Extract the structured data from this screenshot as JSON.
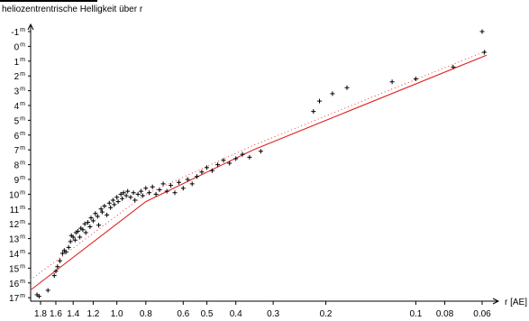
{
  "chart_data": {
    "type": "scatter",
    "title": "heliozentrentrische Helligkeit über r",
    "xlabel": "r [AE]",
    "ylabel": "",
    "x_scale": "log-reciprocal",
    "y_inverted": true,
    "ylim": [
      -1,
      17
    ],
    "x_ticks": [
      1.8,
      1.6,
      1.4,
      1.2,
      1.0,
      0.8,
      0.6,
      0.5,
      0.4,
      0.3,
      0.2,
      0.1,
      0.08,
      0.06
    ],
    "x_tick_labels": [
      "1.8",
      "1.6",
      "1.4",
      "1.2",
      "1.0",
      "0.8",
      "0.6",
      "0.5",
      "0.4",
      "0.3",
      "0.2",
      "0.1",
      "0.08",
      "0.06"
    ],
    "y_ticks": [
      -1,
      0,
      1,
      2,
      3,
      4,
      5,
      6,
      7,
      8,
      9,
      10,
      11,
      12,
      13,
      14,
      15,
      16,
      17
    ],
    "y_tick_labels": [
      "-1",
      "0",
      "1",
      "2",
      "3",
      "4",
      "5",
      "6",
      "7",
      "8",
      "9",
      "10",
      "11",
      "12",
      "13",
      "14",
      "15",
      "16",
      "17"
    ],
    "y_unit_superscript": "m",
    "grid": false,
    "colors": {
      "points": "#000000",
      "fit_line": "#e02020",
      "fit_dotted": "#e04040"
    },
    "series": [
      {
        "kind": "observations",
        "marker": "+",
        "points": [
          [
            1.85,
            16.8
          ],
          [
            1.82,
            16.9
          ],
          [
            1.7,
            16.5
          ],
          [
            1.62,
            15.5
          ],
          [
            1.6,
            15.2
          ],
          [
            1.58,
            14.9
          ],
          [
            1.55,
            14.5
          ],
          [
            1.52,
            14.0
          ],
          [
            1.5,
            13.8
          ],
          [
            1.48,
            13.9
          ],
          [
            1.45,
            13.6
          ],
          [
            1.43,
            13.2
          ],
          [
            1.42,
            12.8
          ],
          [
            1.4,
            12.9
          ],
          [
            1.38,
            13.1
          ],
          [
            1.37,
            12.6
          ],
          [
            1.35,
            12.5
          ],
          [
            1.33,
            12.9
          ],
          [
            1.32,
            12.3
          ],
          [
            1.3,
            12.4
          ],
          [
            1.28,
            12.0
          ],
          [
            1.27,
            12.6
          ],
          [
            1.25,
            11.9
          ],
          [
            1.23,
            12.2
          ],
          [
            1.22,
            11.6
          ],
          [
            1.2,
            11.8
          ],
          [
            1.18,
            11.3
          ],
          [
            1.16,
            11.5
          ],
          [
            1.15,
            12.1
          ],
          [
            1.13,
            11.0
          ],
          [
            1.12,
            11.2
          ],
          [
            1.1,
            10.8
          ],
          [
            1.08,
            11.4
          ],
          [
            1.06,
            10.6
          ],
          [
            1.05,
            10.9
          ],
          [
            1.03,
            10.4
          ],
          [
            1.02,
            10.7
          ],
          [
            1.0,
            10.2
          ],
          [
            0.99,
            10.5
          ],
          [
            0.97,
            10.0
          ],
          [
            0.96,
            10.3
          ],
          [
            0.95,
            9.9
          ],
          [
            0.93,
            10.1
          ],
          [
            0.92,
            9.8
          ],
          [
            0.9,
            10.2
          ],
          [
            0.88,
            9.9
          ],
          [
            0.87,
            10.4
          ],
          [
            0.85,
            10.0
          ],
          [
            0.83,
            9.8
          ],
          [
            0.82,
            10.1
          ],
          [
            0.8,
            9.6
          ],
          [
            0.78,
            9.9
          ],
          [
            0.76,
            9.5
          ],
          [
            0.74,
            10.0
          ],
          [
            0.72,
            9.7
          ],
          [
            0.7,
            9.3
          ],
          [
            0.68,
            9.8
          ],
          [
            0.66,
            9.4
          ],
          [
            0.64,
            9.9
          ],
          [
            0.62,
            9.2
          ],
          [
            0.6,
            9.6
          ],
          [
            0.58,
            9.0
          ],
          [
            0.56,
            9.3
          ],
          [
            0.54,
            8.8
          ],
          [
            0.52,
            8.5
          ],
          [
            0.5,
            8.2
          ],
          [
            0.48,
            8.4
          ],
          [
            0.46,
            8.0
          ],
          [
            0.44,
            7.7
          ],
          [
            0.42,
            7.9
          ],
          [
            0.4,
            7.6
          ],
          [
            0.38,
            7.3
          ],
          [
            0.36,
            7.5
          ],
          [
            0.33,
            7.1
          ],
          [
            0.22,
            4.4
          ],
          [
            0.21,
            3.7
          ],
          [
            0.19,
            3.2
          ],
          [
            0.17,
            2.8
          ],
          [
            0.12,
            2.4
          ],
          [
            0.1,
            2.2
          ],
          [
            0.075,
            1.4
          ],
          [
            0.06,
            -1.0
          ],
          [
            0.059,
            0.4
          ]
        ]
      },
      {
        "kind": "fit",
        "style": "solid",
        "points": [
          [
            1.95,
            16.5
          ],
          [
            0.8,
            10.5
          ],
          [
            0.35,
            7.0
          ],
          [
            0.058,
            0.6
          ]
        ]
      },
      {
        "kind": "fit",
        "style": "dotted",
        "points": [
          [
            1.95,
            15.8
          ],
          [
            0.8,
            10.0
          ],
          [
            0.35,
            6.7
          ],
          [
            0.058,
            0.3
          ]
        ]
      }
    ]
  }
}
